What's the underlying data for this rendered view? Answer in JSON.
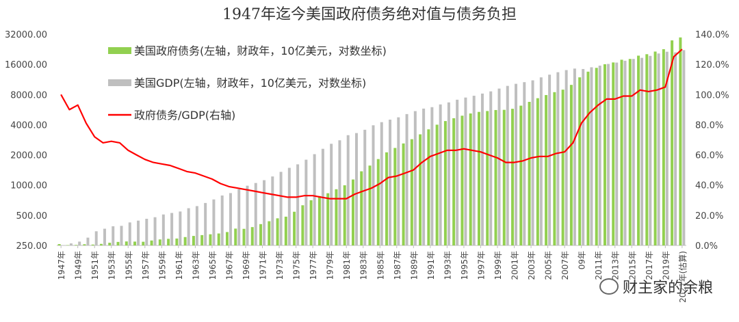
{
  "chart_data": {
    "type": "bar",
    "title": "1947年迄今美国政府债务绝对值与债务负担",
    "categories": [
      "1947年",
      "1948年",
      "1949年",
      "1950年",
      "1951年",
      "1952年",
      "1953年",
      "1954年",
      "1955年",
      "1956年",
      "1957年",
      "1958年",
      "1959年",
      "1960年",
      "1961年",
      "1962年",
      "1963年",
      "1964年",
      "1965年",
      "1966年",
      "1967年",
      "1968年",
      "1969年",
      "1970年",
      "1971年",
      "1972年",
      "1973年",
      "1974年",
      "1975年",
      "1976年",
      "1977年",
      "1978年",
      "1979年",
      "1980年",
      "1981年",
      "1982年",
      "1983年",
      "1984年",
      "1985年",
      "1986年",
      "1987年",
      "1988年",
      "1989年",
      "1990年",
      "1991年",
      "1992年",
      "1993年",
      "1994年",
      "1995年",
      "1996年",
      "1997年",
      "1998年",
      "1999年",
      "2000年",
      "2001年",
      "2002年",
      "2003年",
      "2004年",
      "2005年",
      "2006年",
      "2007年",
      "2008年",
      "2009年",
      "2010年",
      "2011年",
      "2012年",
      "2013年",
      "2014年",
      "2015年",
      "2016年",
      "2017年",
      "2018年",
      "2019年",
      "2020年",
      "2021年(估算)"
    ],
    "tick_labels": [
      "1947年",
      "1949年",
      "1951年",
      "1953年",
      "1955年",
      "1957年",
      "1959年",
      "1961年",
      "1963年",
      "1965年",
      "1967年",
      "1969年",
      "1971年",
      "1973年",
      "1975年",
      "1977年",
      "1979年",
      "1981年",
      "1983年",
      "1985年",
      "1987年",
      "1989年",
      "1991年",
      "1993年",
      "1995年",
      "1997年",
      "1999年",
      "2001年",
      "2003年",
      "2005年",
      "2007年",
      "09年",
      "2011年",
      "2013年",
      "2015年",
      "2017年",
      "2019年",
      "2021年(估算)"
    ],
    "series": [
      {
        "name": "美国政府债务(左轴，财政年，10亿美元，对数坐标)",
        "axis": "left",
        "kind": "bar",
        "color": "#92d050",
        "values": [
          258,
          252,
          253,
          257,
          255,
          259,
          266,
          271,
          274,
          273,
          272,
          280,
          287,
          291,
          293,
          303,
          311,
          317,
          323,
          329,
          340,
          368,
          366,
          381,
          408,
          436,
          466,
          484,
          542,
          629,
          706,
          777,
          829,
          909,
          995,
          1137,
          1372,
          1565,
          1817,
          2121,
          2346,
          2601,
          2868,
          3207,
          3598,
          4002,
          4351,
          4643,
          4921,
          5181,
          5369,
          5478,
          5606,
          5629,
          5770,
          6198,
          6760,
          7355,
          7905,
          8451,
          8951,
          9986,
          11876,
          13529,
          14764,
          16051,
          16719,
          17794,
          18120,
          19539,
          20206,
          21462,
          22669,
          27747,
          29700
        ]
      },
      {
        "name": "美国GDP(左轴，财政年，10亿美元，对数坐标)",
        "axis": "left",
        "kind": "bar",
        "color": "#bfbfbf",
        "values": [
          243,
          262,
          273,
          299,
          346,
          367,
          388,
          392,
          424,
          442,
          461,
          478,
          509,
          527,
          545,
          588,
          617,
          663,
          719,
          787,
          832,
          909,
          985,
          1049,
          1119,
          1219,
          1355,
          1486,
          1610,
          1791,
          2034,
          2300,
          2581,
          2797,
          3145,
          3303,
          3561,
          3948,
          4243,
          4493,
          4740,
          5107,
          5466,
          5792,
          5987,
          6372,
          6678,
          7102,
          7467,
          7780,
          8182,
          8602,
          9174,
          9755,
          10234,
          10630,
          11083,
          11866,
          12627,
          13360,
          14028,
          14524,
          14378,
          14970,
          15544,
          16155,
          16662,
          17385,
          18120,
          18582,
          19439,
          20543,
          21381,
          21060,
          22180
        ]
      },
      {
        "name": "政府债务/GDP(右轴)",
        "axis": "right",
        "kind": "line",
        "color": "#ff0000",
        "values": [
          100,
          90,
          93,
          81,
          72,
          68,
          69,
          68,
          63,
          60,
          57,
          55,
          54,
          53,
          51,
          49,
          48,
          46,
          44,
          41,
          39,
          38,
          37,
          36,
          35,
          34,
          33,
          32,
          32,
          33,
          33,
          32,
          31,
          31,
          31,
          34,
          36,
          38,
          41,
          45,
          46,
          48,
          50,
          55,
          59,
          61,
          63,
          63,
          64,
          63,
          62,
          60,
          58,
          55,
          55,
          56,
          58,
          59,
          59,
          61,
          62,
          68,
          81,
          88,
          93,
          97,
          97,
          99,
          99,
          103,
          102,
          103,
          105,
          125,
          130
        ]
      }
    ],
    "ylim_left": [
      250,
      32000
    ],
    "yscale_left": "log",
    "ylim_right": [
      0,
      140
    ],
    "y_ticks_left": [
      "250.00",
      "500.00",
      "1000.00",
      "2000.00",
      "4000.00",
      "8000.00",
      "16000.00",
      "32000.00"
    ],
    "y_ticks_right": [
      "0.0%",
      "20.0%",
      "40.0%",
      "60.0%",
      "80.0%",
      "100.0%",
      "120.0%",
      "140.0%"
    ],
    "legend_placement": "top-left",
    "grid": false
  },
  "watermark": "财主家的余粮",
  "watermark_icon": "wechat-icon"
}
